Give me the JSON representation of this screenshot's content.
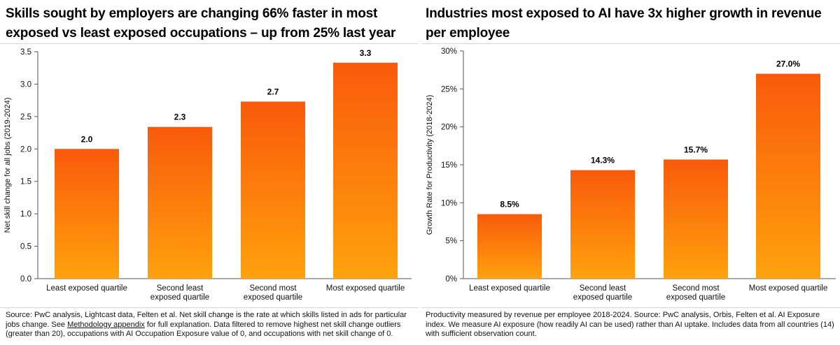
{
  "chart_data": [
    {
      "type": "bar",
      "title": "Skills sought by employers are changing 66% faster in most exposed vs least exposed occupations – up from 25% last year",
      "xlabel": "",
      "ylabel": "Net skill change for all jobs (2019-2024)",
      "categories": [
        [
          "Least exposed quartile"
        ],
        [
          "Second least",
          "exposed quartile"
        ],
        [
          "Second most",
          "exposed quartile"
        ],
        [
          "Most exposed quartile"
        ]
      ],
      "values": [
        2.0,
        2.34,
        2.73,
        3.33
      ],
      "data_labels": [
        "2.0",
        "2.3",
        "2.7",
        "3.3"
      ],
      "ylim": [
        0,
        3.5
      ],
      "yticks": [
        "0.0",
        "0.5",
        "1.0",
        "1.5",
        "2.0",
        "2.5",
        "3.0",
        "3.5"
      ],
      "grid": false,
      "bar_gradient": [
        "#f95a0b",
        "#ffa20d"
      ],
      "source": {
        "pre": "Source: PwC analysis, Lightcast data, Felten et al. Net skill change is the rate at which skills listed in ads for particular jobs change. See ",
        "link": "Methodology appendix",
        "post": " for full explanation. Data filtered to remove highest net skill change outliers (greater than 20), occupations with AI Occupation Exposure value of 0, and occupations with net skill change of 0."
      }
    },
    {
      "type": "bar",
      "title": "Industries most exposed to AI have 3x higher growth in revenue per employee",
      "xlabel": "",
      "ylabel": "Growth Rate for Productivity (2018-2024)",
      "categories": [
        [
          "Least exposed quartile"
        ],
        [
          "Second least",
          "exposed quartile"
        ],
        [
          "Second most",
          "exposed quartile"
        ],
        [
          "Most exposed quartile"
        ]
      ],
      "values": [
        8.5,
        14.3,
        15.7,
        27.0
      ],
      "data_labels": [
        "8.5%",
        "14.3%",
        "15.7%",
        "27.0%"
      ],
      "ylim": [
        0,
        30
      ],
      "yticks": [
        "0%",
        "5%",
        "10%",
        "15%",
        "20%",
        "25%",
        "30%"
      ],
      "grid": false,
      "bar_gradient": [
        "#f95a0b",
        "#ffa20d"
      ],
      "source": {
        "pre": "Productivity measured by revenue per employee 2018-2024. Source: PwC analysis, Orbis, Felten et al. AI Exposure index. We measure AI exposure (how readily AI can be used) rather than AI uptake. Includes data from all countries (14) with sufficient observation count.",
        "link": "",
        "post": ""
      }
    }
  ]
}
